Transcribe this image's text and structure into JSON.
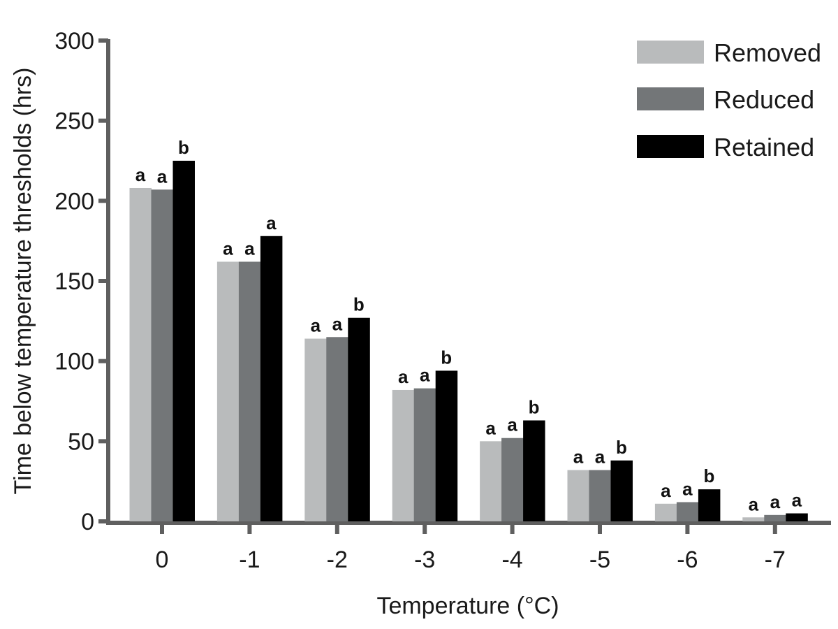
{
  "chart_data": {
    "type": "bar",
    "title": "",
    "xlabel": "Temperature (°C)",
    "ylabel": "Time below temperature thresholds (hrs)",
    "ylim": [
      0,
      300
    ],
    "yticks": [
      0,
      50,
      100,
      150,
      200,
      250,
      300
    ],
    "grid": false,
    "legend_position": "top-right",
    "categories": [
      "0",
      "-1",
      "-2",
      "-3",
      "-4",
      "-5",
      "-6",
      "-7"
    ],
    "series": [
      {
        "name": "Removed",
        "color": "#b9bbbc",
        "values": [
          208,
          162,
          114,
          82,
          50,
          32,
          11,
          2.5
        ],
        "significance": [
          "a",
          "a",
          "a",
          "a",
          "a",
          "a",
          "a",
          "a"
        ]
      },
      {
        "name": "Reduced",
        "color": "#737678",
        "values": [
          207,
          162,
          115,
          83,
          52,
          32,
          12,
          4
        ],
        "significance": [
          "a",
          "a",
          "a",
          "a",
          "a",
          "a",
          "a",
          "a"
        ]
      },
      {
        "name": "Retained",
        "color": "#000000",
        "values": [
          225,
          178,
          127,
          94,
          63,
          38,
          20,
          5
        ],
        "significance": [
          "b",
          "a",
          "b",
          "b",
          "b",
          "b",
          "b",
          "a"
        ]
      }
    ]
  },
  "axis_color": "#5f5f5f"
}
